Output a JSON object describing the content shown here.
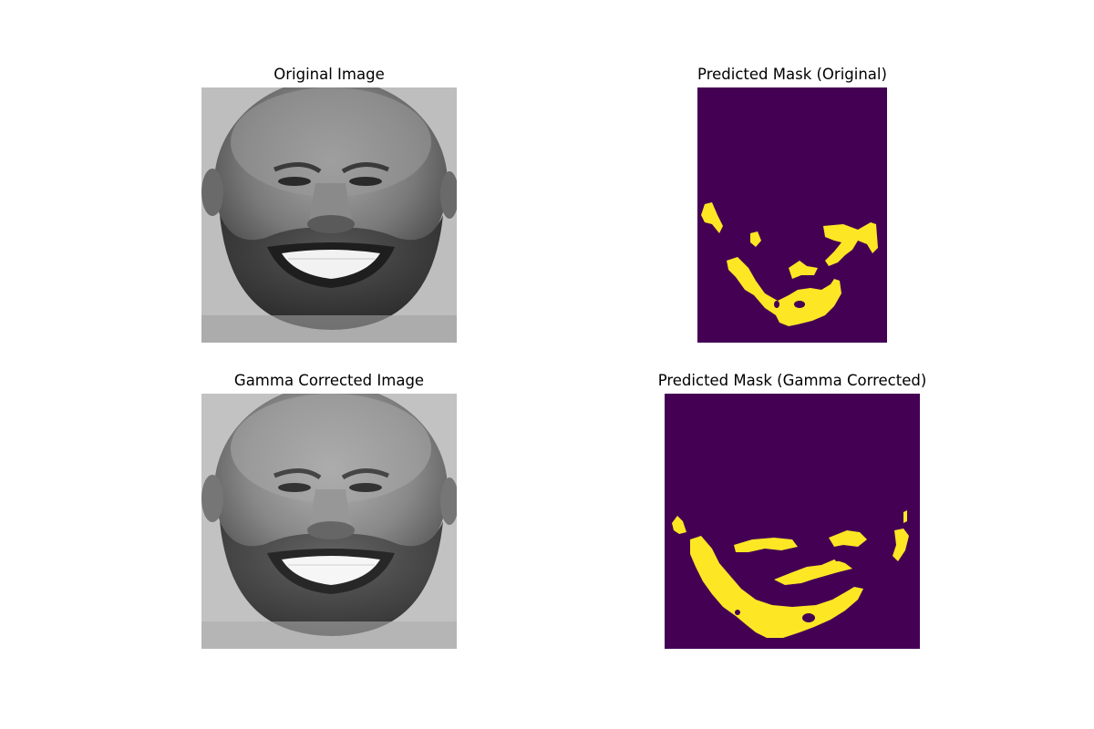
{
  "figure": {
    "panels": [
      {
        "id": "original-image",
        "title": "Original Image",
        "kind": "grayscale-face-photo"
      },
      {
        "id": "mask-original",
        "title": "Predicted Mask (Original)",
        "kind": "binary-mask"
      },
      {
        "id": "gamma-image",
        "title": "Gamma Corrected Image",
        "kind": "grayscale-face-photo"
      },
      {
        "id": "mask-gamma",
        "title": "Predicted Mask (Gamma Corrected)",
        "kind": "binary-mask"
      }
    ],
    "colors": {
      "mask_background": "#440154",
      "mask_foreground": "#fde725",
      "page_background": "#ffffff"
    }
  }
}
